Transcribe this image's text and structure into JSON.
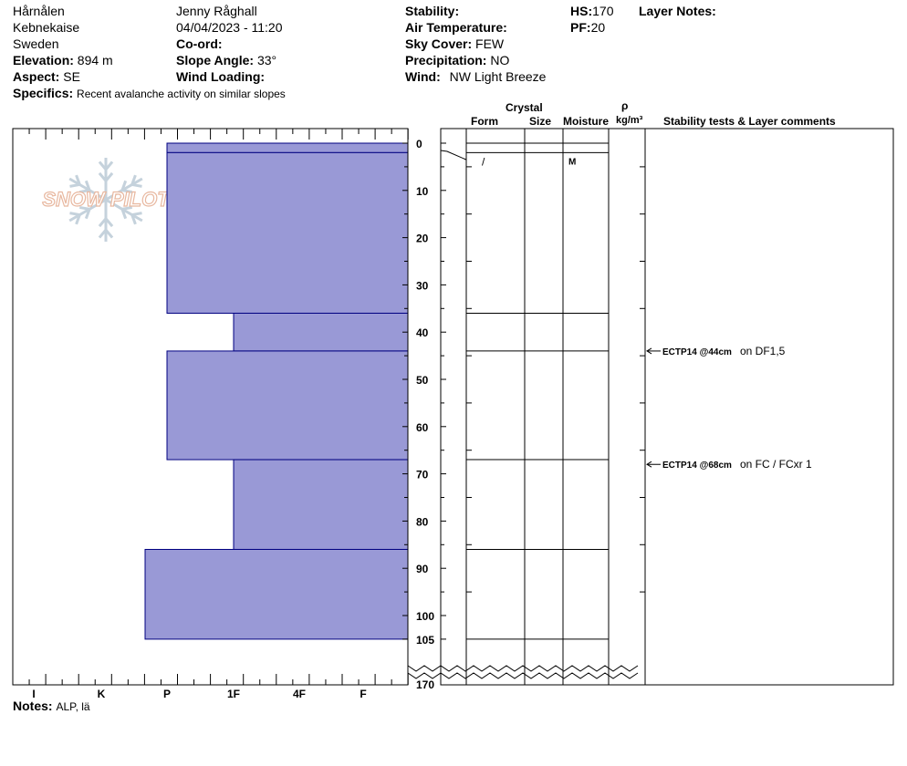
{
  "header": {
    "location": "Hårnålen",
    "region": "Kebnekaise",
    "country": "Sweden",
    "elevation_label": "Elevation:",
    "elevation_value": "894 m",
    "aspect_label": "Aspect:",
    "aspect_value": "SE",
    "specifics_label": "Specifics:",
    "specifics_value": "Recent avalanche activity on similar slopes",
    "observer": "Jenny Råghall",
    "datetime": "04/04/2023 - 11:20",
    "coord_label": "Co-ord:",
    "slope_label": "Slope Angle:",
    "slope_value": "33°",
    "wind_loading_label": "Wind Loading:",
    "stability_label": "Stability:",
    "air_temp_label": "Air Temperature:",
    "sky_label": "Sky Cover:",
    "sky_value": "FEW",
    "precip_label": "Precipitation:",
    "precip_value": "NO",
    "wind_label": "Wind:",
    "wind_value": "NW Light Breeze",
    "hs_label": "HS:",
    "hs_value": "170",
    "pf_label": "PF:",
    "pf_value": "20",
    "layer_notes_label": "Layer Notes:"
  },
  "columns": {
    "crystal": "Crystal",
    "form": "Form",
    "size": "Size",
    "moisture": "Moisture",
    "rho": "ρ",
    "density_unit": "kg/m³",
    "stability": "Stability tests & Layer comments"
  },
  "notes": {
    "label": "Notes:",
    "value": "ALP, lä"
  },
  "logo": {
    "text": "SNOW PILOT",
    "color": "#e8b8a0",
    "flake_color": "#c5d2dc"
  },
  "colors": {
    "layer_fill": "#9999d6",
    "layer_stroke": "#000080"
  },
  "chart_data": {
    "type": "bar",
    "title": "",
    "orientation": "horizontal",
    "x_categories": [
      "I",
      "K",
      "P",
      "1F",
      "4F",
      "F"
    ],
    "hardness_values": {
      "F": 1,
      "4F": 2,
      "1F": 3,
      "P": 4,
      "K": 5,
      "I": 6
    },
    "y_ticks": [
      0,
      10,
      20,
      30,
      40,
      50,
      60,
      70,
      80,
      90,
      100,
      105
    ],
    "y_break_label": "170",
    "ylim": [
      0,
      105
    ],
    "hardness_layers": [
      {
        "top": 0,
        "bottom": 2,
        "hardness": "P"
      },
      {
        "top": 2,
        "bottom": 36,
        "hardness": "P"
      },
      {
        "top": 36,
        "bottom": 44,
        "hardness": "1F"
      },
      {
        "top": 44,
        "bottom": 67,
        "hardness": "P"
      },
      {
        "top": 67,
        "bottom": 86,
        "hardness": "1F"
      },
      {
        "top": 86,
        "bottom": 105,
        "hardness": "P+"
      }
    ],
    "layer_boundaries": [
      0,
      2,
      36,
      44,
      67,
      86,
      105
    ],
    "grain_rows": [
      {
        "top": 0,
        "bottom": 2,
        "form": "",
        "size": "",
        "moisture": ""
      },
      {
        "top": 2,
        "bottom": 36,
        "form": "/",
        "size": "",
        "moisture": "M"
      }
    ],
    "stability_tests": [
      {
        "depth": 44,
        "test": "ECTP14 @44cm",
        "comment": "on DF1,5"
      },
      {
        "depth": 68,
        "test": "ECTP14 @68cm",
        "comment": "on FC / FCxr 1"
      }
    ]
  }
}
